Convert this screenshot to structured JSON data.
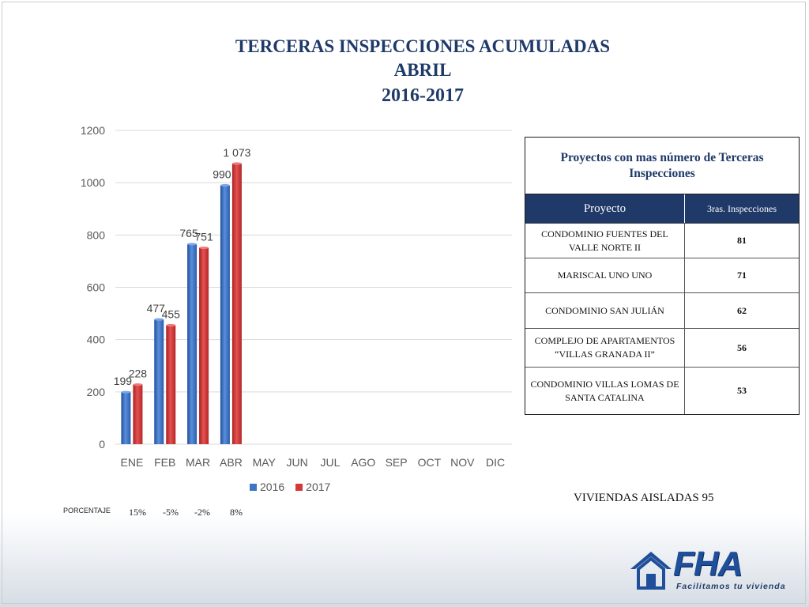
{
  "title": {
    "line1": "TERCERAS INSPECCIONES ACUMULADAS",
    "line2": "ABRIL",
    "line3": "2016-2017"
  },
  "colors": {
    "series_2016": "#3d74c4",
    "series_2017": "#d23a3a",
    "title": "#1f3a68",
    "grid": "#d9d9d9"
  },
  "chart_data": {
    "type": "bar",
    "categories": [
      "ENE",
      "FEB",
      "MAR",
      "ABR",
      "MAY",
      "JUN",
      "JUL",
      "AGO",
      "SEP",
      "OCT",
      "NOV",
      "DIC"
    ],
    "series": [
      {
        "name": "2016",
        "values": [
          199,
          477,
          765,
          990,
          null,
          null,
          null,
          null,
          null,
          null,
          null,
          null
        ],
        "labels": [
          "199",
          "477",
          "765",
          "990"
        ]
      },
      {
        "name": "2017",
        "values": [
          228,
          455,
          751,
          1073,
          null,
          null,
          null,
          null,
          null,
          null,
          null,
          null
        ],
        "labels": [
          "228",
          "455",
          "751",
          "1 073"
        ]
      }
    ],
    "ylim": [
      0,
      1200
    ],
    "yticks": [
      0,
      200,
      400,
      600,
      800,
      1000,
      1200
    ],
    "grid": true,
    "legend_position": "bottom",
    "title": "",
    "xlabel": "",
    "ylabel": ""
  },
  "percentages": {
    "label": "PORCENTAJE",
    "values": [
      "15%",
      "-5%",
      "-2%",
      "8%"
    ]
  },
  "table": {
    "caption": "Proyectos con mas número de Terceras Inspecciones",
    "header_project": "Proyecto",
    "header_count": "3ras. Inspecciones",
    "rows": [
      {
        "project": "CONDOMINIO FUENTES DEL VALLE NORTE II",
        "count": "81"
      },
      {
        "project": "MARISCAL UNO UNO",
        "count": "71"
      },
      {
        "project": "CONDOMINIO SAN JULIÁN",
        "count": "62"
      },
      {
        "project": "COMPLEJO DE APARTAMENTOS “VILLAS GRANADA II”",
        "count": "56"
      },
      {
        "project": "CONDOMINIO VILLAS LOMAS DE SANTA CATALINA",
        "count": "53"
      }
    ]
  },
  "viviendas": "VIVIENDAS AISLADAS  95",
  "logo": {
    "text": "FHA",
    "slogan": "Facilitamos tu vivienda",
    "icon": "house-icon"
  }
}
